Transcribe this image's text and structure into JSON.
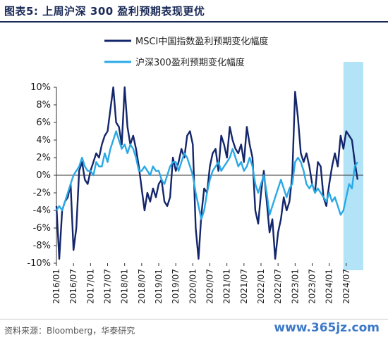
{
  "header": {
    "title": "图表5:  上周沪深 300 盈利预期表现更优"
  },
  "footer": {
    "source": "资料来源：Bloomberg，华泰研究",
    "watermark": "www.365jz.com"
  },
  "colors": {
    "msci": "#14266b",
    "hs300": "#2aa9e6",
    "highlight": "#b3e3f7",
    "title": "#1a2a57"
  },
  "chart_data": {
    "type": "line",
    "legend_position": "top-left",
    "ylim": [
      -10,
      10
    ],
    "y_ticks": [
      -10,
      -8,
      -6,
      -4,
      -2,
      0,
      2,
      4,
      6,
      8,
      10
    ],
    "y_tick_labels": [
      "-10%",
      "-8%",
      "-6%",
      "-4%",
      "-2%",
      "0%",
      "2%",
      "4%",
      "6%",
      "8%",
      "10%"
    ],
    "x_ticks": [
      "2016/01",
      "2016/07",
      "2017/01",
      "2017/07",
      "2018/01",
      "2018/07",
      "2019/01",
      "2019/07",
      "2020/01",
      "2020/07",
      "2021/01",
      "2021/07",
      "2022/01",
      "2022/07",
      "2023/01",
      "2023/07",
      "2024/01",
      "2024/07"
    ],
    "x_range": [
      "2016/01",
      "2025/01"
    ],
    "highlight_range": [
      "2024/06",
      "2025/01"
    ],
    "series": [
      {
        "name": "MSCI中国指数盈利预期变化幅度",
        "color": "#14266b",
        "points": [
          [
            "2016/01",
            -3.5
          ],
          [
            "2016/02",
            -9.5
          ],
          [
            "2016/03",
            -4.0
          ],
          [
            "2016/04",
            -3.0
          ],
          [
            "2016/05",
            -2.5
          ],
          [
            "2016/06",
            -1.0
          ],
          [
            "2016/07",
            -8.5
          ],
          [
            "2016/08",
            -6.0
          ],
          [
            "2016/09",
            0.5
          ],
          [
            "2016/10",
            1.5
          ],
          [
            "2016/11",
            -0.5
          ],
          [
            "2016/12",
            -1.0
          ],
          [
            "2017/01",
            0.5
          ],
          [
            "2017/02",
            1.5
          ],
          [
            "2017/03",
            2.5
          ],
          [
            "2017/04",
            2.0
          ],
          [
            "2017/05",
            3.5
          ],
          [
            "2017/06",
            4.5
          ],
          [
            "2017/07",
            5.0
          ],
          [
            "2017/08",
            7.5
          ],
          [
            "2017/09",
            10.0
          ],
          [
            "2017/10",
            6.0
          ],
          [
            "2017/11",
            5.5
          ],
          [
            "2017/12",
            3.5
          ],
          [
            "2018/01",
            10.0
          ],
          [
            "2018/02",
            5.5
          ],
          [
            "2018/03",
            3.5
          ],
          [
            "2018/04",
            4.5
          ],
          [
            "2018/05",
            3.0
          ],
          [
            "2018/06",
            1.0
          ],
          [
            "2018/07",
            -1.5
          ],
          [
            "2018/08",
            -4.0
          ],
          [
            "2018/09",
            -2.0
          ],
          [
            "2018/10",
            -3.0
          ],
          [
            "2018/11",
            -1.5
          ],
          [
            "2018/12",
            -2.5
          ],
          [
            "2019/01",
            -1.0
          ],
          [
            "2019/02",
            -0.5
          ],
          [
            "2019/03",
            -3.0
          ],
          [
            "2019/04",
            -3.5
          ],
          [
            "2019/05",
            -2.5
          ],
          [
            "2019/06",
            2.0
          ],
          [
            "2019/07",
            0.5
          ],
          [
            "2019/08",
            1.5
          ],
          [
            "2019/09",
            3.0
          ],
          [
            "2019/10",
            2.0
          ],
          [
            "2019/11",
            4.5
          ],
          [
            "2019/12",
            5.0
          ],
          [
            "2020/01",
            3.5
          ],
          [
            "2020/02",
            -6.0
          ],
          [
            "2020/03",
            -9.5
          ],
          [
            "2020/04",
            -4.5
          ],
          [
            "2020/05",
            -1.5
          ],
          [
            "2020/06",
            -2.0
          ],
          [
            "2020/07",
            1.0
          ],
          [
            "2020/08",
            2.5
          ],
          [
            "2020/09",
            3.0
          ],
          [
            "2020/10",
            0.5
          ],
          [
            "2020/11",
            4.5
          ],
          [
            "2020/12",
            3.5
          ],
          [
            "2021/01",
            2.0
          ],
          [
            "2021/02",
            5.5
          ],
          [
            "2021/03",
            4.0
          ],
          [
            "2021/04",
            3.0
          ],
          [
            "2021/05",
            2.5
          ],
          [
            "2021/06",
            3.5
          ],
          [
            "2021/07",
            1.5
          ],
          [
            "2021/08",
            5.5
          ],
          [
            "2021/09",
            3.5
          ],
          [
            "2021/10",
            2.0
          ],
          [
            "2021/11",
            -4.0
          ],
          [
            "2021/12",
            -5.5
          ],
          [
            "2022/01",
            -2.0
          ],
          [
            "2022/02",
            0.5
          ],
          [
            "2022/03",
            -3.0
          ],
          [
            "2022/04",
            -6.5
          ],
          [
            "2022/05",
            -5.0
          ],
          [
            "2022/06",
            -9.5
          ],
          [
            "2022/07",
            -6.5
          ],
          [
            "2022/08",
            -5.0
          ],
          [
            "2022/09",
            -2.5
          ],
          [
            "2022/10",
            -4.0
          ],
          [
            "2022/11",
            -3.0
          ],
          [
            "2022/12",
            0.0
          ],
          [
            "2023/01",
            9.5
          ],
          [
            "2023/02",
            6.5
          ],
          [
            "2023/03",
            2.5
          ],
          [
            "2023/04",
            1.5
          ],
          [
            "2023/05",
            2.5
          ],
          [
            "2023/06",
            1.0
          ],
          [
            "2023/07",
            -1.0
          ],
          [
            "2023/08",
            -2.0
          ],
          [
            "2023/09",
            1.5
          ],
          [
            "2023/10",
            1.0
          ],
          [
            "2023/11",
            -2.5
          ],
          [
            "2023/12",
            -3.5
          ],
          [
            "2024/01",
            -1.0
          ],
          [
            "2024/02",
            1.0
          ],
          [
            "2024/03",
            2.5
          ],
          [
            "2024/04",
            1.0
          ],
          [
            "2024/05",
            4.5
          ],
          [
            "2024/06",
            3.0
          ],
          [
            "2024/07",
            5.0
          ],
          [
            "2024/08",
            4.5
          ],
          [
            "2024/09",
            4.0
          ],
          [
            "2024/10",
            1.5
          ],
          [
            "2024/11",
            -0.5
          ]
        ]
      },
      {
        "name": "沪深300盈利预期变化幅度",
        "color": "#2aa9e6",
        "points": [
          [
            "2016/01",
            -4.0
          ],
          [
            "2016/02",
            -3.5
          ],
          [
            "2016/03",
            -4.0
          ],
          [
            "2016/04",
            -3.0
          ],
          [
            "2016/05",
            -2.0
          ],
          [
            "2016/06",
            -1.0
          ],
          [
            "2016/07",
            0.0
          ],
          [
            "2016/08",
            0.5
          ],
          [
            "2016/09",
            1.0
          ],
          [
            "2016/10",
            2.0
          ],
          [
            "2016/11",
            1.0
          ],
          [
            "2016/12",
            0.5
          ],
          [
            "2017/01",
            0.5
          ],
          [
            "2017/02",
            0.0
          ],
          [
            "2017/03",
            1.5
          ],
          [
            "2017/04",
            1.0
          ],
          [
            "2017/05",
            1.0
          ],
          [
            "2017/06",
            2.5
          ],
          [
            "2017/07",
            1.5
          ],
          [
            "2017/08",
            3.0
          ],
          [
            "2017/09",
            4.0
          ],
          [
            "2017/10",
            5.0
          ],
          [
            "2017/11",
            4.0
          ],
          [
            "2017/12",
            3.0
          ],
          [
            "2018/01",
            3.5
          ],
          [
            "2018/02",
            2.5
          ],
          [
            "2018/03",
            3.5
          ],
          [
            "2018/04",
            3.0
          ],
          [
            "2018/05",
            2.0
          ],
          [
            "2018/06",
            0.5
          ],
          [
            "2018/07",
            0.5
          ],
          [
            "2018/08",
            1.0
          ],
          [
            "2018/09",
            0.5
          ],
          [
            "2018/10",
            0.0
          ],
          [
            "2018/11",
            1.0
          ],
          [
            "2018/12",
            0.5
          ],
          [
            "2019/01",
            0.5
          ],
          [
            "2019/02",
            -0.5
          ],
          [
            "2019/03",
            -1.0
          ],
          [
            "2019/04",
            0.0
          ],
          [
            "2019/05",
            1.0
          ],
          [
            "2019/06",
            1.5
          ],
          [
            "2019/07",
            1.5
          ],
          [
            "2019/08",
            0.5
          ],
          [
            "2019/09",
            1.5
          ],
          [
            "2019/10",
            2.5
          ],
          [
            "2019/11",
            2.0
          ],
          [
            "2019/12",
            1.0
          ],
          [
            "2020/01",
            0.0
          ],
          [
            "2020/02",
            -2.0
          ],
          [
            "2020/03",
            -3.5
          ],
          [
            "2020/04",
            -5.0
          ],
          [
            "2020/05",
            -4.0
          ],
          [
            "2020/06",
            -2.0
          ],
          [
            "2020/07",
            -0.5
          ],
          [
            "2020/08",
            0.5
          ],
          [
            "2020/09",
            1.0
          ],
          [
            "2020/10",
            1.5
          ],
          [
            "2020/11",
            0.5
          ],
          [
            "2020/12",
            1.0
          ],
          [
            "2021/01",
            1.5
          ],
          [
            "2021/02",
            2.0
          ],
          [
            "2021/03",
            3.0
          ],
          [
            "2021/04",
            2.0
          ],
          [
            "2021/05",
            1.0
          ],
          [
            "2021/06",
            1.5
          ],
          [
            "2021/07",
            0.5
          ],
          [
            "2021/08",
            1.0
          ],
          [
            "2021/09",
            2.0
          ],
          [
            "2021/10",
            1.0
          ],
          [
            "2021/11",
            -1.0
          ],
          [
            "2021/12",
            -2.0
          ],
          [
            "2022/01",
            -1.0
          ],
          [
            "2022/02",
            0.0
          ],
          [
            "2022/03",
            -2.0
          ],
          [
            "2022/04",
            -4.5
          ],
          [
            "2022/05",
            -3.5
          ],
          [
            "2022/06",
            -2.5
          ],
          [
            "2022/07",
            -1.5
          ],
          [
            "2022/08",
            -0.5
          ],
          [
            "2022/09",
            -1.5
          ],
          [
            "2022/10",
            -2.5
          ],
          [
            "2022/11",
            -1.5
          ],
          [
            "2022/12",
            -1.0
          ],
          [
            "2023/01",
            1.5
          ],
          [
            "2023/02",
            2.0
          ],
          [
            "2023/03",
            1.5
          ],
          [
            "2023/04",
            0.5
          ],
          [
            "2023/05",
            -1.0
          ],
          [
            "2023/06",
            -1.5
          ],
          [
            "2023/07",
            -1.0
          ],
          [
            "2023/08",
            -2.0
          ],
          [
            "2023/09",
            -1.5
          ],
          [
            "2023/10",
            -2.0
          ],
          [
            "2023/11",
            -2.5
          ],
          [
            "2023/12",
            -3.0
          ],
          [
            "2024/01",
            -2.0
          ],
          [
            "2024/02",
            -3.0
          ],
          [
            "2024/03",
            -2.5
          ],
          [
            "2024/04",
            -3.5
          ],
          [
            "2024/05",
            -4.5
          ],
          [
            "2024/06",
            -4.0
          ],
          [
            "2024/07",
            -2.5
          ],
          [
            "2024/08",
            -1.0
          ],
          [
            "2024/09",
            -1.5
          ],
          [
            "2024/10",
            1.0
          ],
          [
            "2024/11",
            1.5
          ]
        ]
      }
    ]
  }
}
